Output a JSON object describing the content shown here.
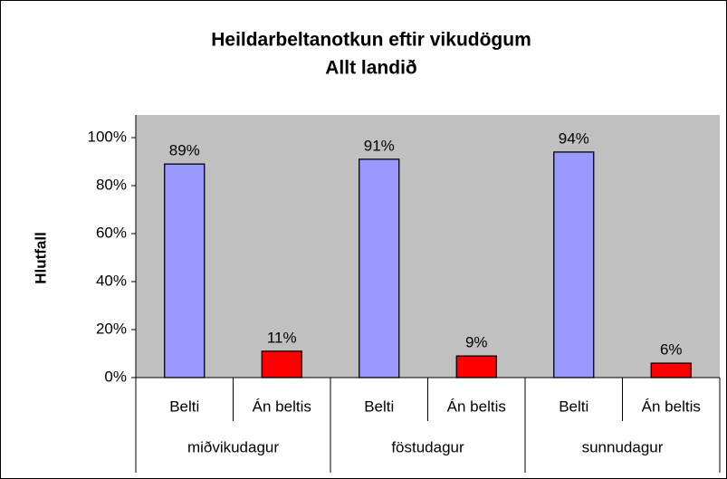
{
  "chart_data": {
    "type": "bar",
    "title": [
      "Heildarbeltanotkun eftir vikudögum",
      "Allt landið"
    ],
    "y_label": "Hlutfall",
    "categories": [
      "Belti",
      "Án beltis",
      "Belti",
      "Án beltis",
      "Belti",
      "Án beltis"
    ],
    "groups": [
      "miðvikudagur",
      "föstudagur",
      "sunnudagur"
    ],
    "values": [
      89,
      11,
      91,
      9,
      94,
      6
    ],
    "value_labels": [
      "89%",
      "11%",
      "91%",
      "9%",
      "94%",
      "6%"
    ],
    "colors": [
      "#9999ff",
      "#ff0000",
      "#9999ff",
      "#ff0000",
      "#9999ff",
      "#ff0000"
    ],
    "ylim": [
      0,
      100
    ],
    "yticks": [
      {
        "value": 0,
        "label": "0%"
      },
      {
        "value": 20,
        "label": "20%"
      },
      {
        "value": 40,
        "label": "40%"
      },
      {
        "value": 60,
        "label": "60%"
      },
      {
        "value": 80,
        "label": "80%"
      },
      {
        "value": 100,
        "label": "100%"
      }
    ],
    "grid": false
  }
}
